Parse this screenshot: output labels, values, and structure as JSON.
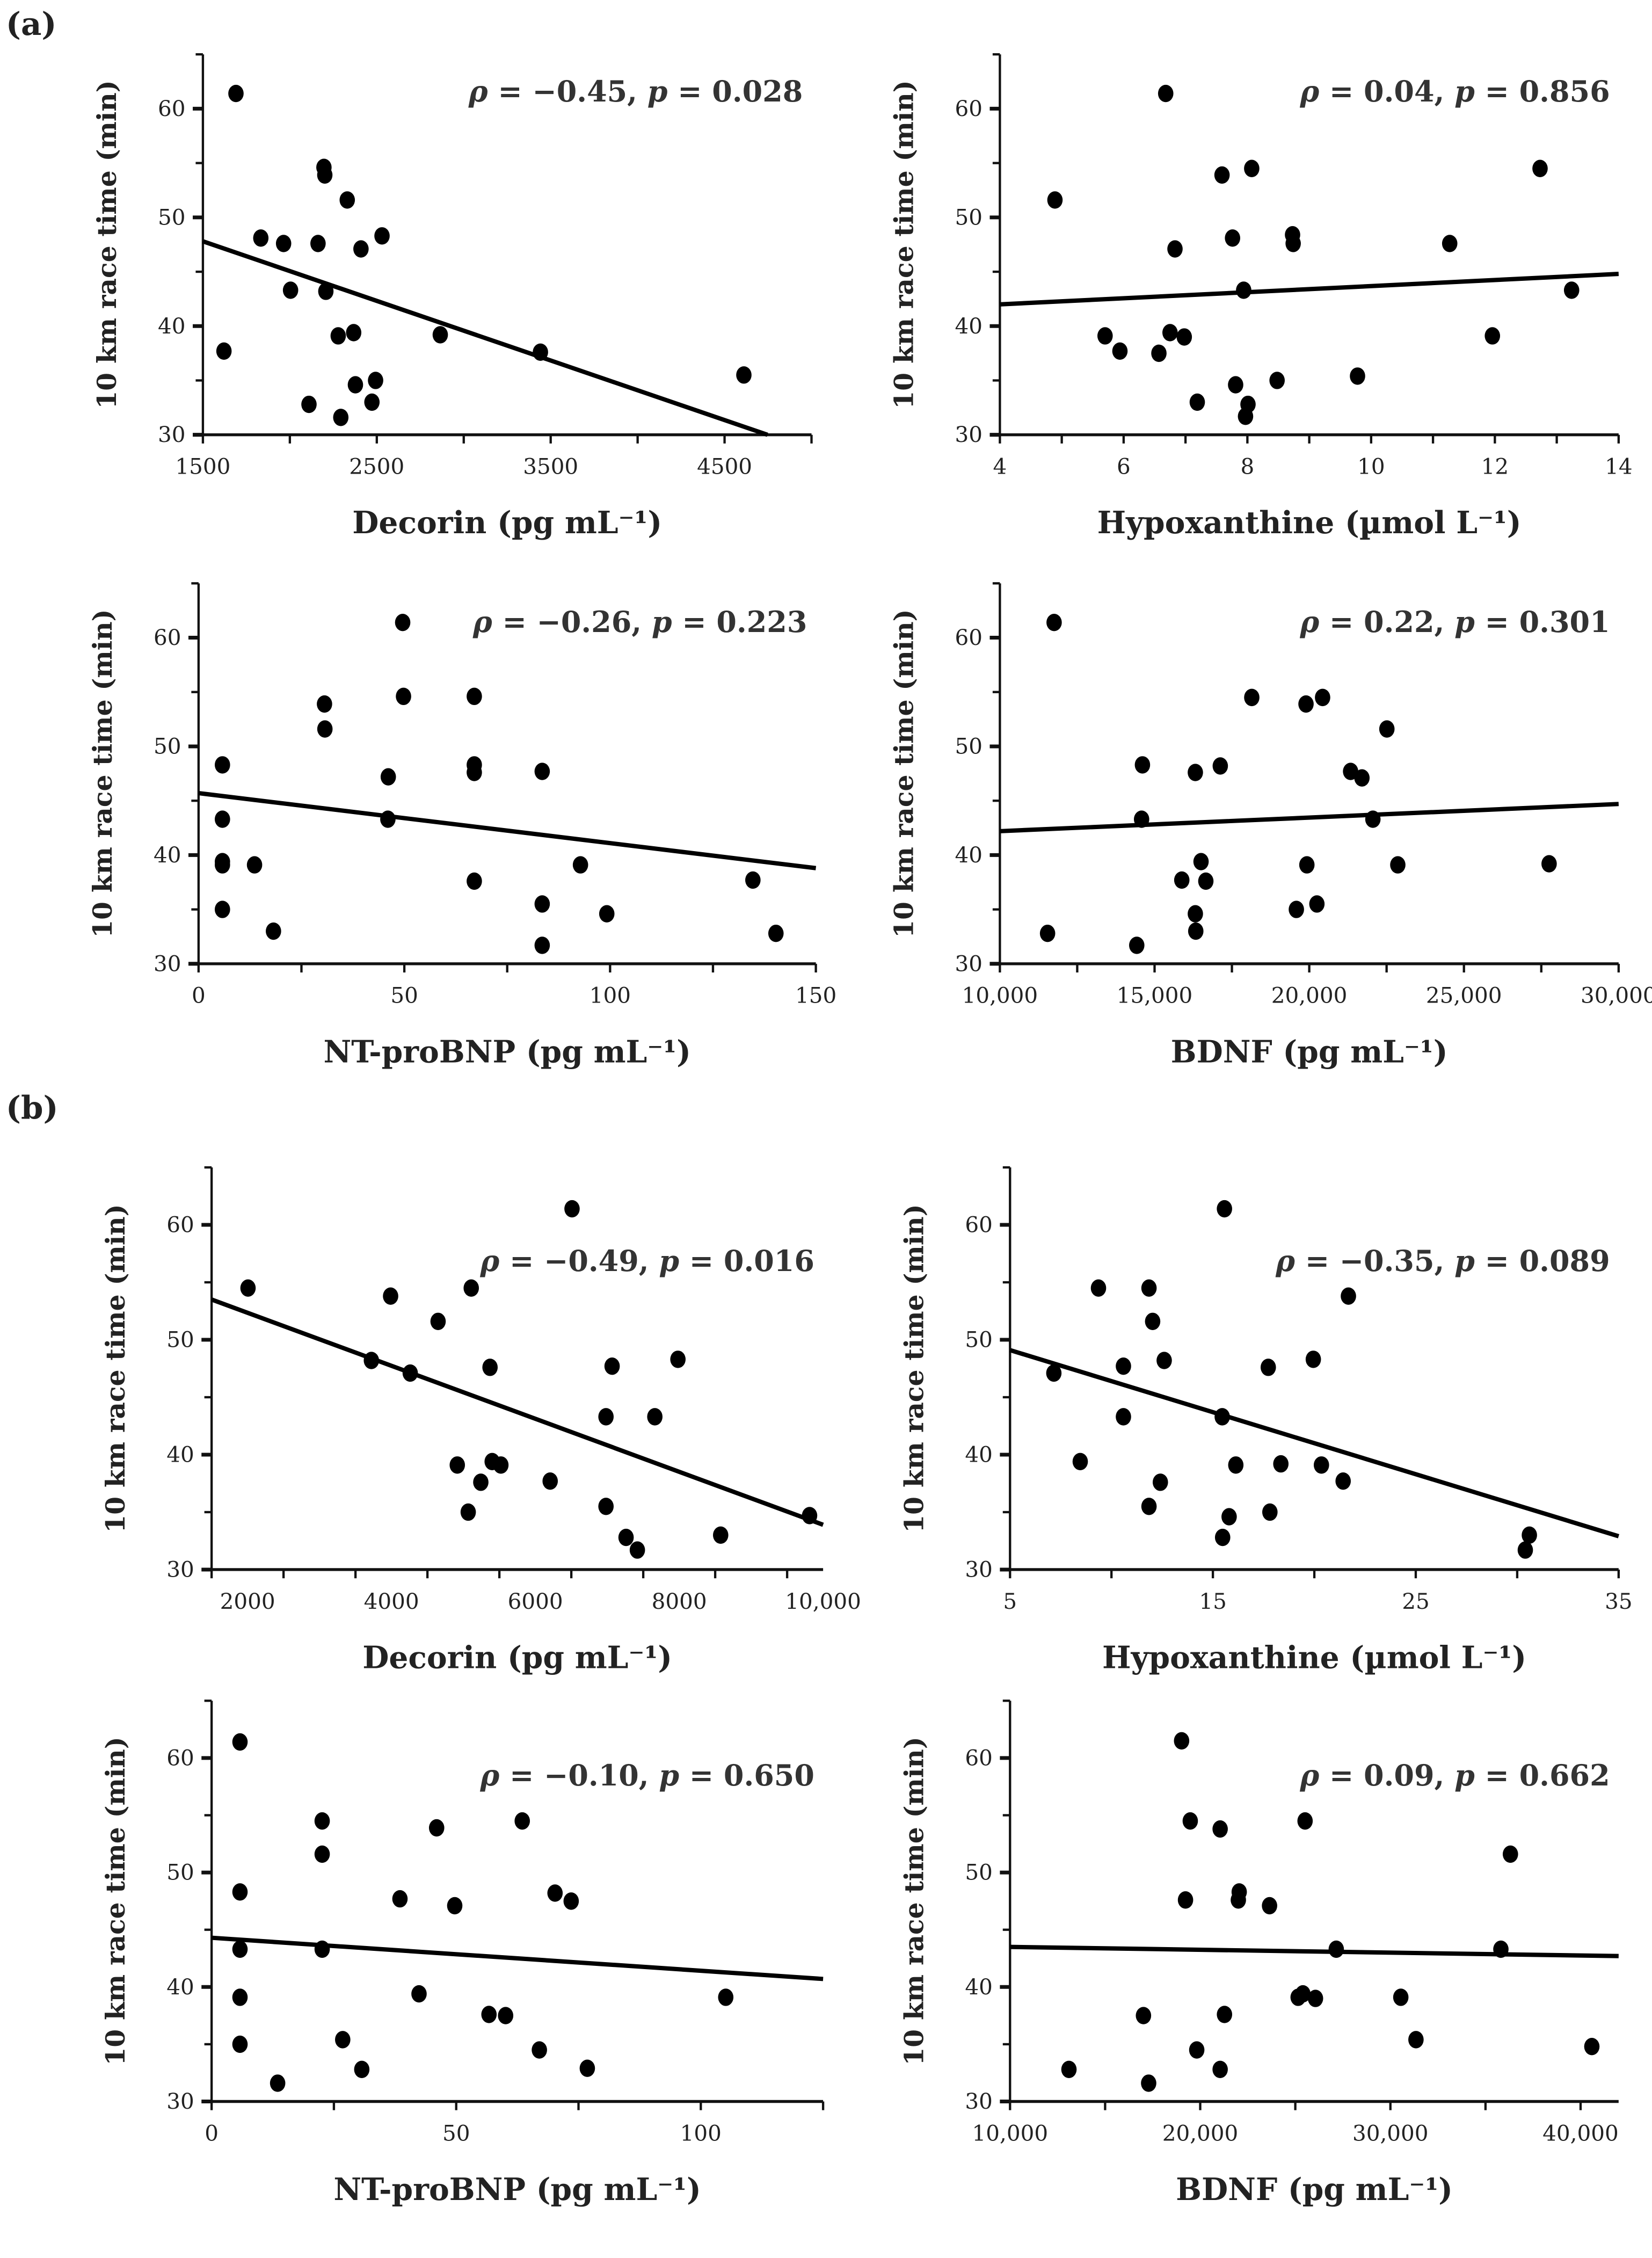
{
  "panel_labels": [
    "(a)",
    "(b)"
  ],
  "chart_data": [
    {
      "type": "scatter",
      "group": "(a)",
      "xlabel": "Decorin (pg mL⁻¹)",
      "ylabel": "10 km race time (min)",
      "annotation": "ρ = −0.45, p = 0.028",
      "xlim": [
        1500,
        5000
      ],
      "ylim": [
        30,
        65
      ],
      "xticks": [
        1500,
        2500,
        3500,
        4500
      ],
      "xtick_labels": [
        "1500",
        "2500",
        "3500",
        "4500"
      ],
      "xminor": 500,
      "yticks": [
        30,
        40,
        50,
        60
      ],
      "ytick_labels": [
        "30",
        "40",
        "50",
        "60"
      ],
      "yminor": 5,
      "fit": [
        [
          1500,
          47.8
        ],
        [
          4747,
          30
        ]
      ],
      "points": [
        [
          1690,
          61.4
        ],
        [
          1621,
          37.7
        ],
        [
          1833,
          48.1
        ],
        [
          1964,
          47.6
        ],
        [
          2162,
          47.6
        ],
        [
          2196,
          54.6
        ],
        [
          2201,
          53.9
        ],
        [
          2330,
          51.6
        ],
        [
          2409,
          47.1
        ],
        [
          2530,
          48.3
        ],
        [
          2004,
          43.3
        ],
        [
          2207,
          43.2
        ],
        [
          2278,
          39.1
        ],
        [
          2367,
          39.4
        ],
        [
          2865,
          39.2
        ],
        [
          3441,
          37.6
        ],
        [
          4611,
          35.5
        ],
        [
          2377,
          34.6
        ],
        [
          2493,
          35.0
        ],
        [
          2472,
          33.0
        ],
        [
          2110,
          32.8
        ],
        [
          2293,
          31.6
        ]
      ]
    },
    {
      "type": "scatter",
      "group": "(a)",
      "xlabel": "Hypoxanthine (µmol L⁻¹)",
      "ylabel": "10 km race time (min)",
      "annotation": "ρ = 0.04, p = 0.856",
      "xlim": [
        4,
        14
      ],
      "ylim": [
        30,
        65
      ],
      "xticks": [
        4,
        6,
        8,
        10,
        12,
        14
      ],
      "xtick_labels": [
        "4",
        "6",
        "8",
        "10",
        "12",
        "14"
      ],
      "xminor": 1,
      "yticks": [
        30,
        40,
        50,
        60
      ],
      "ytick_labels": [
        "30",
        "40",
        "50",
        "60"
      ],
      "yminor": 5,
      "fit": [
        [
          4,
          42.0
        ],
        [
          14,
          44.8
        ]
      ],
      "points": [
        [
          6.68,
          61.4
        ],
        [
          4.89,
          51.6
        ],
        [
          7.59,
          53.9
        ],
        [
          8.07,
          54.5
        ],
        [
          12.73,
          54.5
        ],
        [
          7.76,
          48.1
        ],
        [
          8.73,
          48.4
        ],
        [
          8.74,
          47.6
        ],
        [
          6.83,
          47.1
        ],
        [
          11.27,
          47.6
        ],
        [
          7.94,
          43.3
        ],
        [
          13.24,
          43.3
        ],
        [
          5.7,
          39.1
        ],
        [
          6.75,
          39.4
        ],
        [
          6.98,
          39.0
        ],
        [
          11.96,
          39.1
        ],
        [
          5.94,
          37.7
        ],
        [
          6.57,
          37.5
        ],
        [
          9.78,
          35.4
        ],
        [
          8.48,
          35.0
        ],
        [
          7.81,
          34.6
        ],
        [
          7.19,
          33.0
        ],
        [
          8.01,
          32.8
        ],
        [
          7.97,
          31.7
        ]
      ]
    },
    {
      "type": "scatter",
      "group": "(a)",
      "xlabel": "NT-proBNP (pg mL⁻¹)",
      "ylabel": "10 km race time (min)",
      "annotation": "ρ = −0.26, p = 0.223",
      "xlim": [
        0,
        150
      ],
      "ylim": [
        30,
        65
      ],
      "xticks": [
        0,
        50,
        100,
        150
      ],
      "xtick_labels": [
        "0",
        "50",
        "100",
        "150"
      ],
      "xminor": 25,
      "yticks": [
        30,
        40,
        50,
        60
      ],
      "ytick_labels": [
        "30",
        "40",
        "50",
        "60"
      ],
      "yminor": 5,
      "fit": [
        [
          0,
          45.7
        ],
        [
          150,
          38.8
        ]
      ],
      "points": [
        [
          49.6,
          61.4
        ],
        [
          30.6,
          53.9
        ],
        [
          49.8,
          54.6
        ],
        [
          67.0,
          54.6
        ],
        [
          30.7,
          51.6
        ],
        [
          5.8,
          48.3
        ],
        [
          67.0,
          48.3
        ],
        [
          67.0,
          47.6
        ],
        [
          83.5,
          47.7
        ],
        [
          46.1,
          47.2
        ],
        [
          5.8,
          43.3
        ],
        [
          46.0,
          43.3
        ],
        [
          5.8,
          39.4
        ],
        [
          5.8,
          39.1
        ],
        [
          13.6,
          39.1
        ],
        [
          92.8,
          39.1
        ],
        [
          67.0,
          37.6
        ],
        [
          134.7,
          37.7
        ],
        [
          83.5,
          35.5
        ],
        [
          5.8,
          35.0
        ],
        [
          99.2,
          34.6
        ],
        [
          18.2,
          33.0
        ],
        [
          140.3,
          32.8
        ],
        [
          83.5,
          31.7
        ]
      ]
    },
    {
      "type": "scatter",
      "group": "(a)",
      "xlabel": "BDNF (pg mL⁻¹)",
      "ylabel": "10 km race time (min)",
      "annotation": "ρ = 0.22, p = 0.301",
      "xlim": [
        10000,
        30000
      ],
      "ylim": [
        30,
        65
      ],
      "xticks": [
        10000,
        15000,
        20000,
        25000,
        30000
      ],
      "xtick_labels": [
        "10,000",
        "15,000",
        "20,000",
        "25,000",
        "30,000"
      ],
      "xminor": 2500,
      "yticks": [
        30,
        40,
        50,
        60
      ],
      "ytick_labels": [
        "30",
        "40",
        "50",
        "60"
      ],
      "yminor": 5,
      "fit": [
        [
          10000,
          42.2
        ],
        [
          30000,
          44.7
        ]
      ],
      "points": [
        [
          11753,
          61.4
        ],
        [
          18142,
          54.5
        ],
        [
          19895,
          53.9
        ],
        [
          20431,
          54.5
        ],
        [
          22509,
          51.6
        ],
        [
          14608,
          48.3
        ],
        [
          16318,
          47.6
        ],
        [
          17124,
          48.2
        ],
        [
          21336,
          47.7
        ],
        [
          21703,
          47.1
        ],
        [
          14580,
          43.3
        ],
        [
          22057,
          43.3
        ],
        [
          16502,
          39.4
        ],
        [
          19923,
          39.1
        ],
        [
          22862,
          39.1
        ],
        [
          27753,
          39.2
        ],
        [
          15880,
          37.7
        ],
        [
          16657,
          37.6
        ],
        [
          20247,
          35.5
        ],
        [
          19583,
          35.0
        ],
        [
          16318,
          34.6
        ],
        [
          16332,
          33.0
        ],
        [
          11541,
          32.8
        ],
        [
          14424,
          31.7
        ]
      ]
    },
    {
      "type": "scatter",
      "group": "(b)",
      "xlabel": "Decorin (pg mL⁻¹)",
      "ylabel": "10 km race time (min)",
      "annotation": "ρ = −0.49, p = 0.016",
      "xlim": [
        1500,
        10000
      ],
      "ylim": [
        30,
        65
      ],
      "xticks": [
        2000,
        4000,
        6000,
        8000,
        10000
      ],
      "xtick_labels": [
        "2000",
        "4000",
        "6000",
        "8000",
        "10,000"
      ],
      "xminor": 1000,
      "yticks": [
        30,
        40,
        50,
        60
      ],
      "ytick_labels": [
        "30",
        "40",
        "50",
        "60"
      ],
      "yminor": 5,
      "fit": [
        [
          1500,
          53.5
        ],
        [
          10000,
          33.9
        ]
      ],
      "points": [
        [
          6510,
          61.4
        ],
        [
          2006,
          54.5
        ],
        [
          5109,
          54.5
        ],
        [
          3988,
          53.8
        ],
        [
          4648,
          51.6
        ],
        [
          3721,
          48.2
        ],
        [
          7982,
          48.3
        ],
        [
          5370,
          47.6
        ],
        [
          7067,
          47.7
        ],
        [
          4261,
          47.1
        ],
        [
          6982,
          43.3
        ],
        [
          7661,
          43.3
        ],
        [
          4915,
          39.1
        ],
        [
          5400,
          39.4
        ],
        [
          5521,
          39.1
        ],
        [
          5242,
          37.6
        ],
        [
          6206,
          37.7
        ],
        [
          6982,
          35.5
        ],
        [
          5067,
          35.0
        ],
        [
          7261,
          32.8
        ],
        [
          7418,
          31.7
        ],
        [
          8576,
          33.0
        ],
        [
          9812,
          34.7
        ]
      ]
    },
    {
      "type": "scatter",
      "group": "(b)",
      "xlabel": "Hypoxanthine (µmol L⁻¹)",
      "ylabel": "10 km race time (min)",
      "annotation": "ρ = −0.35, p = 0.089",
      "xlim": [
        5,
        35
      ],
      "ylim": [
        30,
        65
      ],
      "xticks": [
        5,
        15,
        25,
        35
      ],
      "xtick_labels": [
        "5",
        "15",
        "25",
        "35"
      ],
      "xminor": 5,
      "yticks": [
        30,
        40,
        50,
        60
      ],
      "ytick_labels": [
        "30",
        "40",
        "50",
        "60"
      ],
      "yminor": 5,
      "fit": [
        [
          5,
          49.1
        ],
        [
          35,
          32.9
        ]
      ],
      "points": [
        [
          15.57,
          61.4
        ],
        [
          9.36,
          54.5
        ],
        [
          11.85,
          54.5
        ],
        [
          21.68,
          53.8
        ],
        [
          12.03,
          51.6
        ],
        [
          19.95,
          48.3
        ],
        [
          12.6,
          48.2
        ],
        [
          10.59,
          47.7
        ],
        [
          17.73,
          47.6
        ],
        [
          7.16,
          47.1
        ],
        [
          10.59,
          43.3
        ],
        [
          15.46,
          43.3
        ],
        [
          8.46,
          39.4
        ],
        [
          16.13,
          39.1
        ],
        [
          18.35,
          39.2
        ],
        [
          20.35,
          39.1
        ],
        [
          12.41,
          37.6
        ],
        [
          21.42,
          37.7
        ],
        [
          11.85,
          35.5
        ],
        [
          17.81,
          35.0
        ],
        [
          15.8,
          34.6
        ],
        [
          15.48,
          32.8
        ],
        [
          30.6,
          33.0
        ],
        [
          30.4,
          31.7
        ]
      ]
    },
    {
      "type": "scatter",
      "group": "(b)",
      "xlabel": "NT-proBNP (pg mL⁻¹)",
      "ylabel": "10 km race time (min)",
      "annotation": "ρ = −0.10, p = 0.650",
      "xlim": [
        0,
        125
      ],
      "ylim": [
        30,
        65
      ],
      "xticks": [
        0,
        50,
        100
      ],
      "xtick_labels": [
        "0",
        "50",
        "100"
      ],
      "xminor": 25,
      "yticks": [
        30,
        40,
        50,
        60
      ],
      "ytick_labels": [
        "30",
        "40",
        "50",
        "60"
      ],
      "yminor": 5,
      "fit": [
        [
          0,
          44.3
        ],
        [
          125,
          40.7
        ]
      ],
      "points": [
        [
          5.8,
          61.4
        ],
        [
          22.6,
          54.5
        ],
        [
          46.0,
          53.9
        ],
        [
          63.5,
          54.5
        ],
        [
          22.6,
          51.6
        ],
        [
          5.8,
          48.3
        ],
        [
          38.5,
          47.7
        ],
        [
          49.7,
          47.1
        ],
        [
          70.2,
          48.2
        ],
        [
          73.5,
          47.5
        ],
        [
          5.8,
          43.3
        ],
        [
          22.6,
          43.3
        ],
        [
          5.8,
          39.1
        ],
        [
          42.4,
          39.4
        ],
        [
          105.1,
          39.1
        ],
        [
          56.7,
          37.6
        ],
        [
          60.1,
          37.5
        ],
        [
          5.8,
          35.0
        ],
        [
          26.8,
          35.4
        ],
        [
          67.0,
          34.5
        ],
        [
          30.7,
          32.8
        ],
        [
          76.8,
          32.9
        ],
        [
          13.5,
          31.6
        ]
      ]
    },
    {
      "type": "scatter",
      "group": "(b)",
      "xlabel": "BDNF (pg mL⁻¹)",
      "ylabel": "10 km race time (min)",
      "annotation": "ρ = 0.09, p = 0.662",
      "xlim": [
        10000,
        42000
      ],
      "ylim": [
        30,
        65
      ],
      "xticks": [
        10000,
        20000,
        30000,
        40000
      ],
      "xtick_labels": [
        "10,000",
        "20,000",
        "30,000",
        "40,000"
      ],
      "xminor": 5000,
      "yticks": [
        30,
        40,
        50,
        60
      ],
      "ytick_labels": [
        "30",
        "40",
        "50",
        "60"
      ],
      "yminor": 5,
      "fit": [
        [
          10000,
          43.5
        ],
        [
          42000,
          42.7
        ]
      ],
      "points": [
        [
          19021,
          61.5
        ],
        [
          19476,
          54.5
        ],
        [
          21048,
          53.8
        ],
        [
          25513,
          54.5
        ],
        [
          36310,
          51.6
        ],
        [
          19226,
          47.6
        ],
        [
          22050,
          48.3
        ],
        [
          22005,
          47.6
        ],
        [
          23645,
          47.1
        ],
        [
          27153,
          43.3
        ],
        [
          35809,
          43.3
        ],
        [
          25148,
          39.1
        ],
        [
          25399,
          39.4
        ],
        [
          26060,
          39.0
        ],
        [
          30547,
          39.1
        ],
        [
          17016,
          37.5
        ],
        [
          21276,
          37.6
        ],
        [
          19818,
          34.5
        ],
        [
          31344,
          35.4
        ],
        [
          40592,
          34.8
        ],
        [
          13098,
          32.8
        ],
        [
          21048,
          32.8
        ],
        [
          17289,
          31.6
        ]
      ]
    }
  ]
}
